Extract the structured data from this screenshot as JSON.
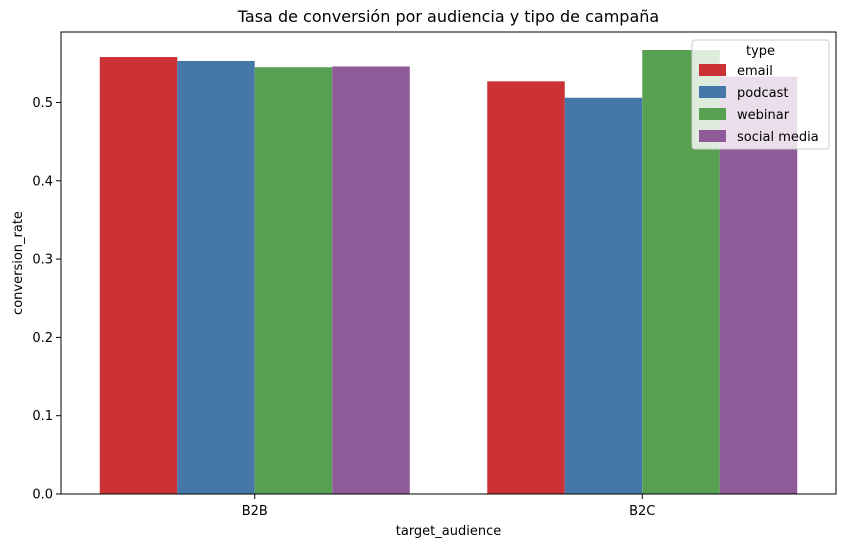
{
  "chart_data": {
    "type": "bar",
    "title": "Tasa de conversión por audiencia y tipo de campaña",
    "xlabel": "target_audience",
    "ylabel": "conversion_rate",
    "categories": [
      "B2B",
      "B2C"
    ],
    "ylim": [
      0,
      0.59
    ],
    "yticks": [
      0.0,
      0.1,
      0.2,
      0.3,
      0.4,
      0.5
    ],
    "ytick_labels": [
      "0.0",
      "0.1",
      "0.2",
      "0.3",
      "0.4",
      "0.5"
    ],
    "grid": false,
    "legend": {
      "title": "type",
      "placement": "top-right"
    },
    "series": [
      {
        "name": "email",
        "color": "#cc3135",
        "values": [
          0.558,
          0.527
        ]
      },
      {
        "name": "podcast",
        "color": "#4677a9",
        "values": [
          0.553,
          0.506
        ]
      },
      {
        "name": "webinar",
        "color": "#58a152",
        "values": [
          0.545,
          0.567
        ]
      },
      {
        "name": "social media",
        "color": "#8f5a98",
        "values": [
          0.546,
          0.533
        ]
      }
    ]
  }
}
